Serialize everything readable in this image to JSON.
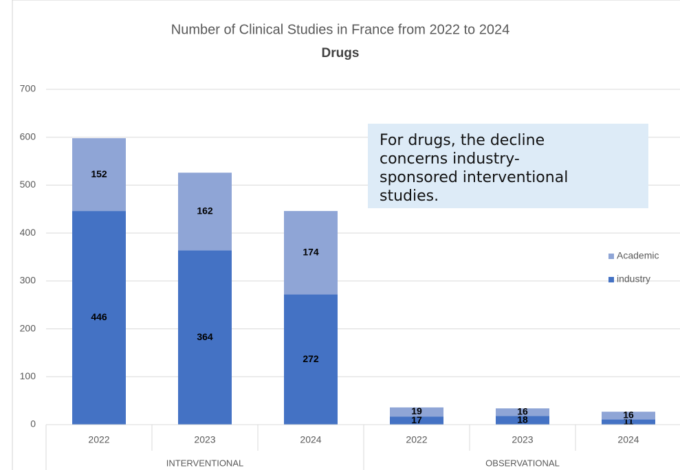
{
  "chart_data": {
    "type": "stacked_bar",
    "title": "Number of Clinical Studies in France from 2022 to 2024",
    "subtitle": "Drugs",
    "groups": [
      {
        "name": "INTERVENTIONAL",
        "categories": [
          "2022",
          "2023",
          "2024"
        ]
      },
      {
        "name": "OBSERVATIONAL",
        "categories": [
          "2022",
          "2023",
          "2024"
        ]
      }
    ],
    "series": [
      {
        "name": "industry",
        "color": "#4472c4",
        "values": [
          446,
          364,
          272,
          17,
          18,
          11
        ]
      },
      {
        "name": "Academic",
        "color": "#8fa5d6",
        "values": [
          152,
          162,
          174,
          19,
          16,
          16
        ]
      }
    ],
    "ylim": [
      0,
      700
    ],
    "yticks": [
      0,
      100,
      200,
      300,
      400,
      500,
      600,
      700
    ],
    "grid": true,
    "legend": "right",
    "annotation": [
      "For drugs, the decline",
      "concerns industry-",
      "sponsored interventional",
      "studies."
    ]
  }
}
